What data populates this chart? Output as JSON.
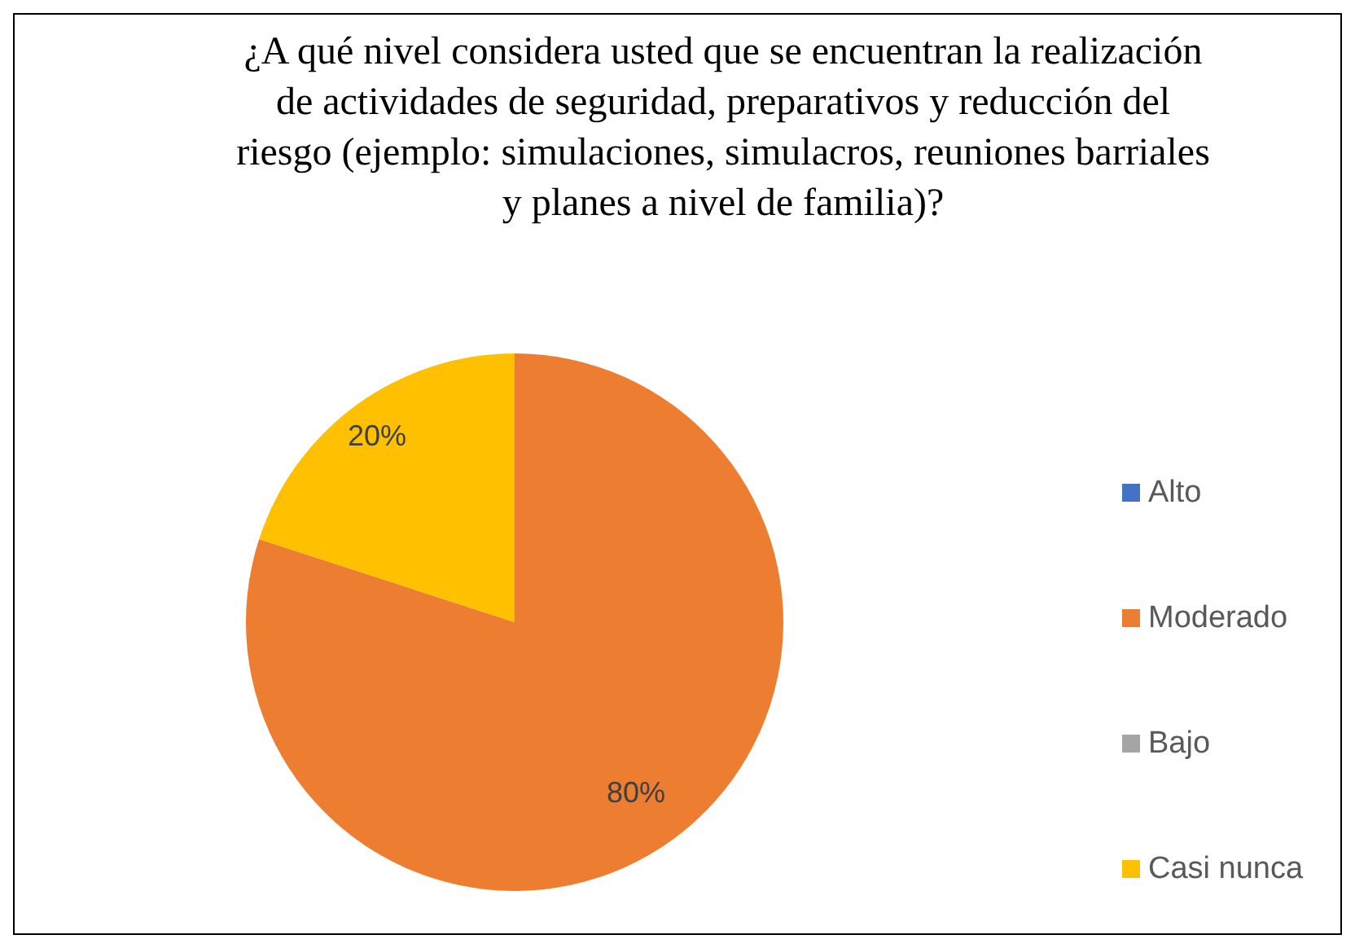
{
  "chart_data": {
    "type": "pie",
    "title": "¿A qué nivel considera usted que se encuentran la realización de actividades de seguridad, preparativos y reducción del riesgo (ejemplo: simulaciones, simulacros, reuniones barriales y planes a nivel de familia)?",
    "categories": [
      "Alto",
      "Moderado",
      "Bajo",
      "Casi nunca"
    ],
    "values": [
      0,
      80,
      0,
      20
    ],
    "colors": [
      "#4472c4",
      "#ed7d31",
      "#a5a5a5",
      "#ffc000"
    ],
    "value_labels": [
      null,
      "80%",
      null,
      "20%"
    ],
    "legend": "right"
  }
}
